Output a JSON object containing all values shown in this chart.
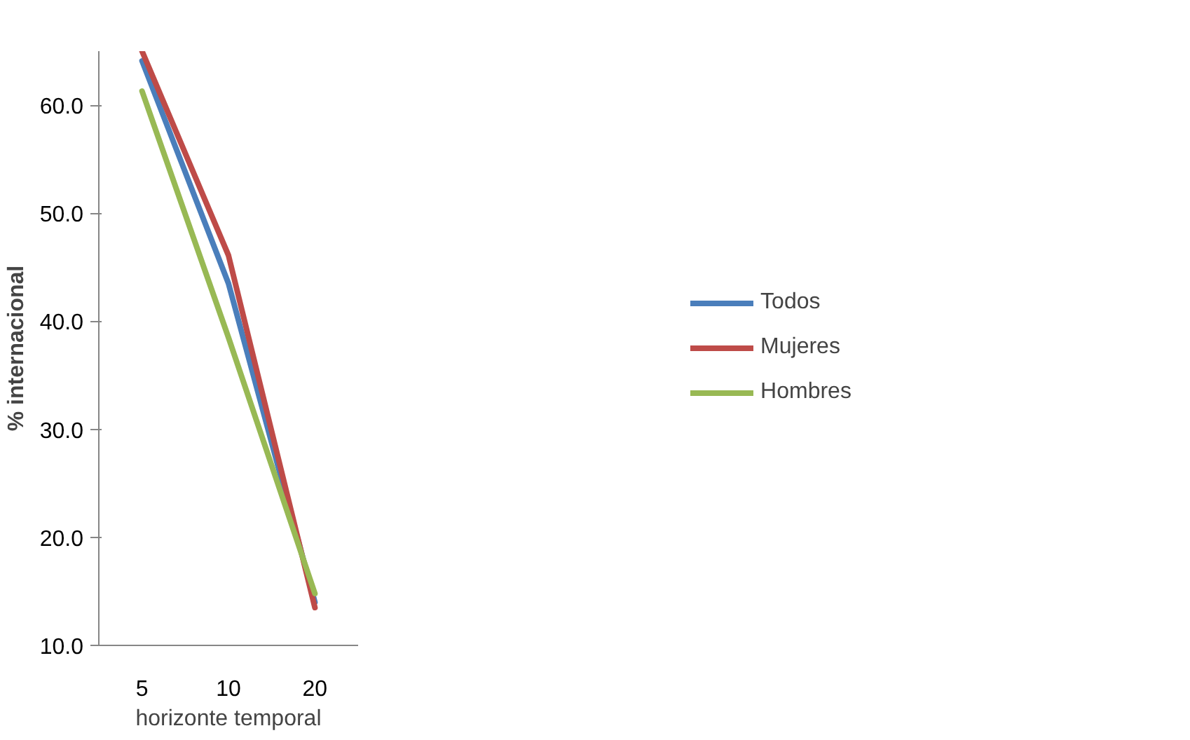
{
  "chart_data": {
    "type": "line",
    "xlabel": "horizonte temporal",
    "ylabel": "% internacional",
    "categories": [
      "5",
      "10",
      "20"
    ],
    "series": [
      {
        "name": "Todos",
        "color": "#4a7ebb",
        "values": [
          64.1,
          43.5,
          14.0
        ]
      },
      {
        "name": "Mujeres",
        "color": "#be4b48",
        "values": [
          65.0,
          46.1,
          13.5
        ]
      },
      {
        "name": "Hombres",
        "color": "#98b954",
        "values": [
          61.3,
          38.5,
          14.8
        ]
      }
    ],
    "ylim": [
      10,
      65
    ],
    "yticks": [
      {
        "value": 10,
        "label": "10.0"
      },
      {
        "value": 20,
        "label": "20.0"
      },
      {
        "value": 30,
        "label": "30.0"
      },
      {
        "value": 40,
        "label": "40.0"
      },
      {
        "value": 50,
        "label": "50.0"
      },
      {
        "value": 60,
        "label": "60.0"
      }
    ],
    "grid": false,
    "legend": "right",
    "marker": "none",
    "line_style": "solid"
  }
}
